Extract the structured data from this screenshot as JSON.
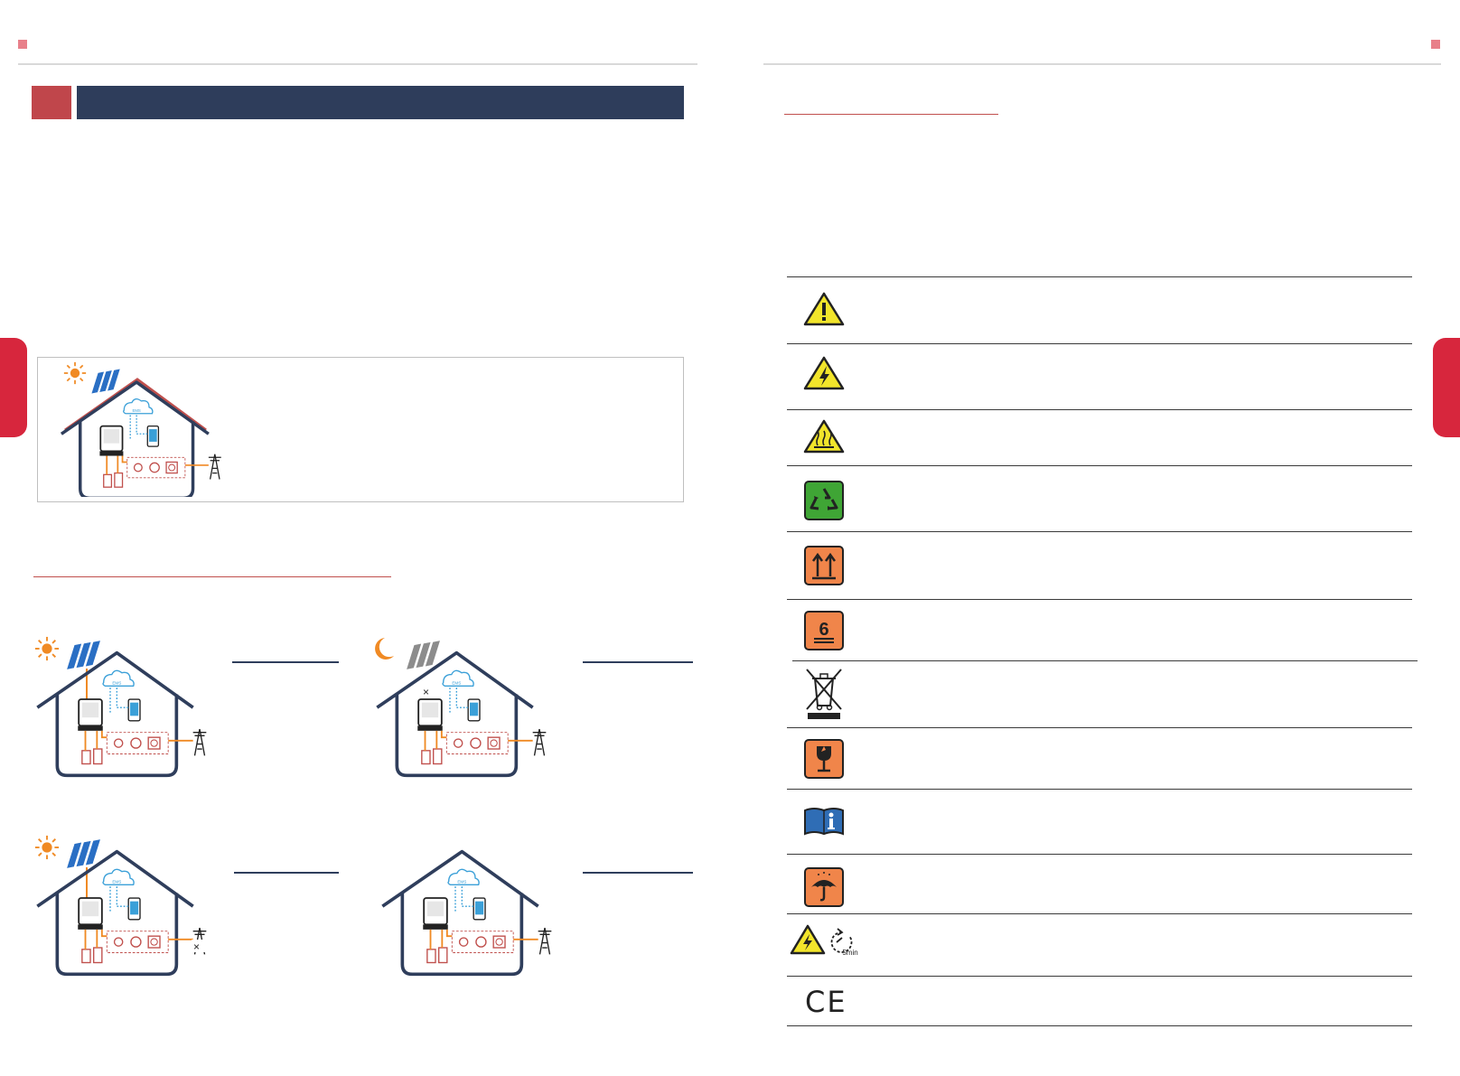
{
  "colors": {
    "accent_red": "#c0504d",
    "tab_red": "#d7263d",
    "banner_navy": "#2e3d5b",
    "house_navy": "#2f3e5c",
    "flow_orange": "#f08a24",
    "warn_yellow": "#f2e52b",
    "recycle_green": "#3fa535",
    "box_orange": "#f0854a",
    "manual_blue": "#2f6db5"
  },
  "left_page": {
    "scenes": [
      {
        "name": "sunny-feed-in",
        "icon": "sun-icon"
      },
      {
        "name": "night-grid",
        "icon": "moon-icon"
      },
      {
        "name": "sunny-off-grid",
        "icon": "sun-icon"
      },
      {
        "name": "grid-charge",
        "icon": "none"
      }
    ]
  },
  "right_page": {
    "symbols": [
      {
        "icon": "general-warning-icon"
      },
      {
        "icon": "electric-shock-icon"
      },
      {
        "icon": "hot-surface-icon"
      },
      {
        "icon": "recycle-icon"
      },
      {
        "icon": "this-side-up-icon"
      },
      {
        "icon": "stacking-limit-icon",
        "text": "6"
      },
      {
        "icon": "weee-bin-icon"
      },
      {
        "icon": "fragile-icon"
      },
      {
        "icon": "read-manual-icon"
      },
      {
        "icon": "keep-dry-icon"
      },
      {
        "icon": "discharge-wait-icon",
        "text": "5min"
      },
      {
        "icon": "ce-mark-icon",
        "text": "CE"
      }
    ]
  }
}
